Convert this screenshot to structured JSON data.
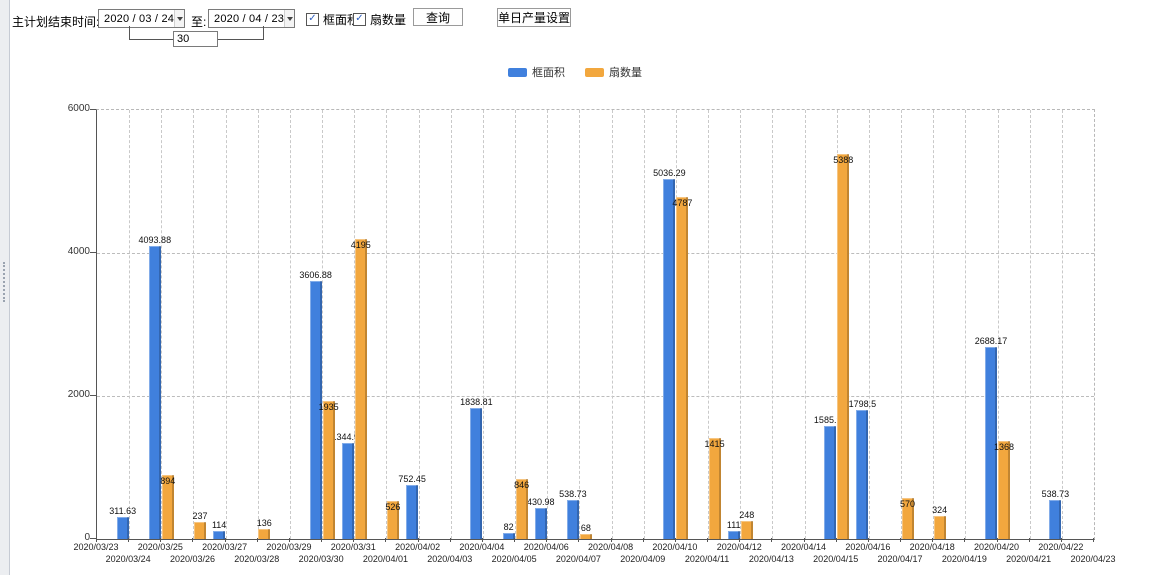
{
  "toolbar": {
    "label_end_time": "主计划结束时间:",
    "date_from": "2020 / 03 / 24",
    "label_to": "至:",
    "date_to": "2020 / 04 / 23",
    "days_value": "30",
    "checkbox_area": {
      "label": "框面积",
      "checked": true
    },
    "checkbox_fan": {
      "label": "扇数量",
      "checked": true
    },
    "query_button": "查询",
    "daily_output_button": "单日产量设置"
  },
  "chart_data": {
    "type": "bar",
    "title": "",
    "xlabel": "",
    "ylabel": "",
    "ylim": [
      0,
      6000
    ],
    "yticks": [
      0,
      2000,
      4000,
      6000
    ],
    "grid": true,
    "legend_position": "top",
    "categories": [
      "2020/03/23",
      "2020/03/24",
      "2020/03/25",
      "2020/03/26",
      "2020/03/27",
      "2020/03/28",
      "2020/03/29",
      "2020/03/30",
      "2020/03/31",
      "2020/04/01",
      "2020/04/02",
      "2020/04/03",
      "2020/04/04",
      "2020/04/05",
      "2020/04/06",
      "2020/04/07",
      "2020/04/08",
      "2020/04/09",
      "2020/04/10",
      "2020/04/11",
      "2020/04/12",
      "2020/04/13",
      "2020/04/14",
      "2020/04/15",
      "2020/04/16",
      "2020/04/17",
      "2020/04/18",
      "2020/04/19",
      "2020/04/20",
      "2020/04/21",
      "2020/04/22",
      "2020/04/23"
    ],
    "series": [
      {
        "name": "框面积",
        "color": "#4080dd",
        "values": [
          null,
          311.63,
          4093.88,
          null,
          114,
          null,
          null,
          3606.88,
          1344.95,
          null,
          752.45,
          null,
          1838.81,
          82,
          430.98,
          538.73,
          null,
          null,
          5036.29,
          null,
          111,
          null,
          null,
          1585.96,
          1798.5,
          null,
          null,
          null,
          2688.17,
          null,
          538.73,
          null
        ]
      },
      {
        "name": "扇数量",
        "color": "#f2a73e",
        "values": [
          null,
          null,
          894,
          237,
          null,
          136,
          null,
          1935,
          4195,
          526,
          null,
          null,
          null,
          846,
          null,
          68,
          null,
          null,
          4787,
          1415,
          248,
          null,
          null,
          5388,
          null,
          570,
          324,
          null,
          1368,
          null,
          null,
          null
        ]
      }
    ]
  }
}
